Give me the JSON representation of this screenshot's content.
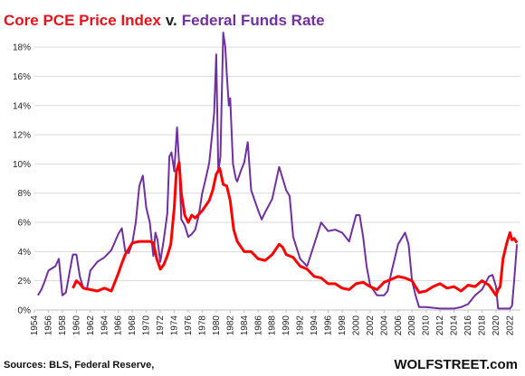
{
  "chart_data": {
    "type": "line",
    "title_part1": "Core PCE Price Index",
    "title_joiner": "v.",
    "title_part2": "Federal Funds Rate",
    "ylim": [
      0,
      19
    ],
    "xlim": [
      1954,
      2023.5
    ],
    "y_ticks": [
      0,
      2,
      4,
      6,
      8,
      10,
      12,
      14,
      16,
      18
    ],
    "y_tick_labels": [
      "0%",
      "2%",
      "4%",
      "6%",
      "8%",
      "10%",
      "12%",
      "14%",
      "16%",
      "18%"
    ],
    "x_ticks": [
      1954,
      1956,
      1958,
      1960,
      1962,
      1964,
      1966,
      1968,
      1970,
      1972,
      1974,
      1976,
      1978,
      1980,
      1982,
      1984,
      1986,
      1988,
      1990,
      1992,
      1994,
      1996,
      1998,
      2000,
      2002,
      2004,
      2006,
      2008,
      2010,
      2012,
      2014,
      2016,
      2018,
      2020,
      2022
    ],
    "grid": true,
    "series": [
      {
        "name": "Federal Funds Rate",
        "color": "#7030a0",
        "x": [
          1954.5,
          1955,
          1955.5,
          1956,
          1957,
          1957.5,
          1958,
          1958.5,
          1959,
          1959.5,
          1960,
          1960.5,
          1961,
          1961.5,
          1962,
          1963,
          1964,
          1965,
          1966,
          1966.5,
          1967,
          1967.5,
          1968,
          1968.5,
          1969,
          1969.5,
          1970,
          1970.5,
          1971,
          1971.3,
          1971.6,
          1972,
          1972.5,
          1973,
          1973.3,
          1973.6,
          1974,
          1974.4,
          1974.7,
          1975,
          1975.5,
          1976,
          1976.5,
          1977,
          1977.5,
          1978,
          1978.5,
          1979,
          1979.4,
          1979.7,
          1980,
          1980.3,
          1980.6,
          1981,
          1981.3,
          1981.5,
          1981.8,
          1982,
          1982.4,
          1982.8,
          1983,
          1983.5,
          1984,
          1984.5,
          1985,
          1986,
          1986.5,
          1987,
          1988,
          1989,
          1989.5,
          1990,
          1990.5,
          1991,
          1992,
          1993,
          1994,
          1995,
          1996,
          1997,
          1998,
          1999,
          2000,
          2000.5,
          2001,
          2001.5,
          2002,
          2003,
          2004,
          2004.5,
          2005,
          2006,
          2007,
          2007.5,
          2008,
          2008.5,
          2009,
          2010,
          2012,
          2014,
          2015,
          2016,
          2017,
          2018,
          2019,
          2019.5,
          2020,
          2020.3,
          2021,
          2022,
          2022.3,
          2022.6,
          2023
        ],
        "y": [
          1.0,
          1.4,
          2.0,
          2.7,
          3.0,
          3.5,
          1.0,
          1.2,
          2.5,
          3.8,
          3.8,
          2.3,
          1.5,
          1.4,
          2.7,
          3.3,
          3.6,
          4.1,
          5.2,
          5.6,
          4.0,
          3.9,
          4.6,
          6.0,
          8.5,
          9.2,
          7.0,
          6.0,
          3.7,
          5.3,
          4.8,
          3.3,
          4.8,
          6.6,
          10.5,
          10.8,
          9.5,
          12.5,
          10.0,
          6.2,
          5.8,
          5.0,
          5.2,
          5.5,
          6.5,
          8.0,
          9.0,
          10.1,
          12.0,
          13.5,
          17.5,
          9.5,
          10.5,
          19.0,
          18.0,
          16.2,
          14.0,
          14.5,
          10.0,
          9.0,
          8.8,
          9.5,
          10.1,
          11.5,
          8.2,
          6.8,
          6.2,
          6.7,
          7.6,
          9.8,
          9.0,
          8.2,
          7.8,
          5.0,
          3.5,
          3.0,
          4.5,
          6.0,
          5.4,
          5.5,
          5.3,
          4.7,
          6.5,
          6.5,
          5.0,
          3.0,
          1.7,
          1.0,
          1.0,
          1.3,
          2.5,
          4.5,
          5.3,
          4.5,
          2.0,
          1.0,
          0.2,
          0.2,
          0.1,
          0.1,
          0.2,
          0.4,
          1.0,
          1.4,
          2.3,
          2.4,
          1.6,
          0.1,
          0.1,
          0.1,
          0.3,
          2.0,
          4.5
        ]
      },
      {
        "name": "Core PCE Price Index",
        "color": "#ff0000",
        "x": [
          1959.5,
          1960,
          1960.5,
          1961,
          1962,
          1963,
          1964,
          1965,
          1966,
          1966.5,
          1967,
          1968,
          1969,
          1970,
          1970.5,
          1971,
          1971.5,
          1972,
          1972.5,
          1973,
          1973.5,
          1974,
          1974.3,
          1974.7,
          1975,
          1975.5,
          1976,
          1976.5,
          1977,
          1978,
          1979,
          1979.5,
          1980,
          1980.5,
          1981,
          1981.5,
          1982,
          1982.5,
          1983,
          1984,
          1985,
          1986,
          1987,
          1988,
          1989,
          1989.5,
          1990,
          1991,
          1992,
          1993,
          1994,
          1995,
          1996,
          1997,
          1998,
          1999,
          2000,
          2001,
          2002,
          2003,
          2004,
          2005,
          2006,
          2007,
          2008,
          2009,
          2010,
          2011,
          2012,
          2013,
          2014,
          2015,
          2016,
          2017,
          2018,
          2019,
          2020,
          2020.3,
          2020.6,
          2021,
          2021.5,
          2022,
          2022.3,
          2022.6,
          2023
        ],
        "y": [
          1.5,
          2.0,
          1.8,
          1.5,
          1.4,
          1.3,
          1.5,
          1.3,
          2.5,
          3.2,
          3.8,
          4.6,
          4.7,
          4.7,
          4.7,
          4.6,
          3.5,
          2.8,
          3.1,
          3.7,
          4.5,
          7.0,
          9.5,
          10.1,
          8.0,
          6.5,
          6.0,
          6.5,
          6.3,
          6.8,
          7.5,
          8.2,
          9.3,
          9.7,
          8.6,
          8.5,
          7.5,
          5.5,
          4.7,
          4.0,
          4.0,
          3.5,
          3.4,
          3.8,
          4.5,
          4.3,
          3.8,
          3.6,
          3.0,
          2.8,
          2.3,
          2.2,
          1.8,
          1.8,
          1.5,
          1.4,
          1.8,
          1.9,
          1.6,
          1.4,
          1.9,
          2.1,
          2.3,
          2.2,
          2.0,
          1.2,
          1.3,
          1.6,
          1.8,
          1.5,
          1.6,
          1.3,
          1.7,
          1.6,
          2.0,
          1.7,
          1.0,
          1.4,
          1.6,
          3.5,
          4.5,
          5.3,
          4.8,
          4.9,
          4.6
        ]
      }
    ],
    "source": "Sources: BLS, Federal Reserve,",
    "brand": "WOLFSTREET.com"
  }
}
